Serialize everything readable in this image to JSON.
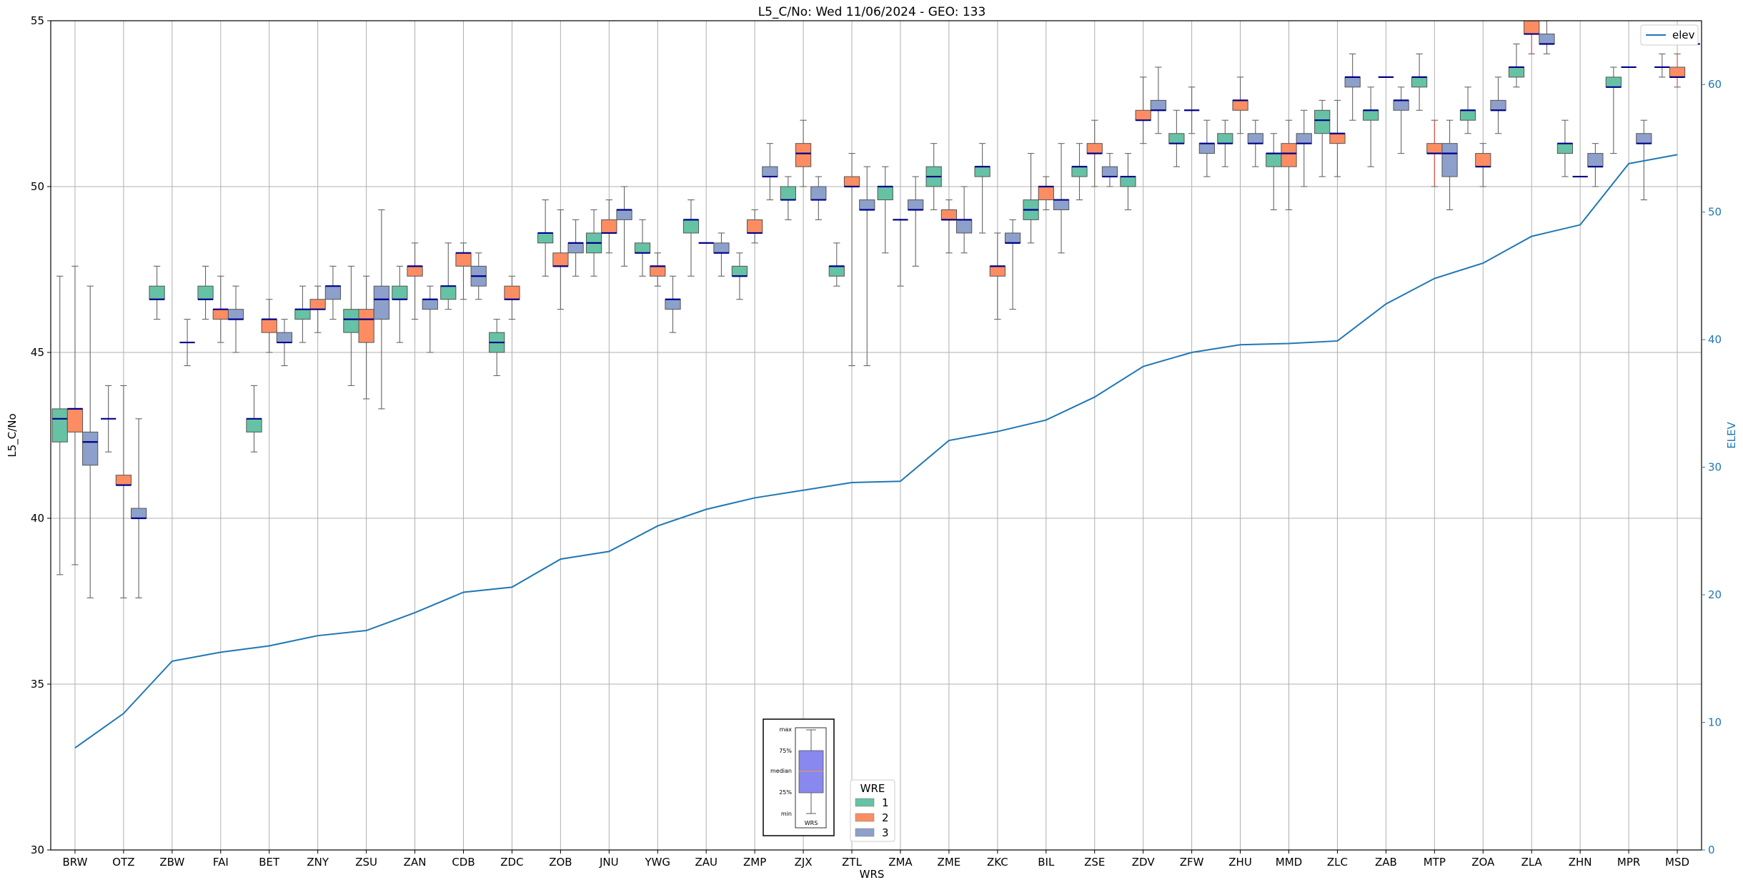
{
  "chart_data": {
    "type": "box",
    "title": "L5_C/No: Wed 11/06/2024 - GEO: 133",
    "xlabel": "WRS",
    "ylabel": "L5_C/No",
    "y2label": "ELEV",
    "ylim": [
      30,
      55
    ],
    "y2lim": [
      0,
      65
    ],
    "yticks": [
      30,
      35,
      40,
      45,
      50,
      55
    ],
    "y2ticks": [
      0,
      10,
      20,
      30,
      40,
      50,
      60
    ],
    "grid": true,
    "categories": [
      "BRW",
      "OTZ",
      "ZBW",
      "FAI",
      "BET",
      "ZNY",
      "ZSU",
      "ZAN",
      "CDB",
      "ZDC",
      "ZOB",
      "JNU",
      "YWG",
      "ZAU",
      "ZMP",
      "ZJX",
      "ZTL",
      "ZMA",
      "ZME",
      "ZKC",
      "BIL",
      "ZSE",
      "ZDV",
      "ZFW",
      "ZHU",
      "MMD",
      "ZLC",
      "ZAB",
      "MTP",
      "ZOA",
      "ZLA",
      "ZHN",
      "MPR",
      "MSD"
    ],
    "series": [
      {
        "name": "1",
        "color": "#66c2a5",
        "boxes": [
          [
            38.3,
            42.3,
            43.0,
            43.3,
            47.3
          ],
          [
            42.0,
            43.0,
            43.0,
            43.0,
            44.0
          ],
          [
            46.0,
            46.6,
            46.6,
            47.0,
            47.6
          ],
          [
            46.0,
            46.6,
            46.6,
            47.0,
            47.6
          ],
          [
            42.0,
            42.6,
            43.0,
            43.0,
            44.0
          ],
          [
            45.3,
            46.0,
            46.3,
            46.3,
            47.0
          ],
          [
            44.0,
            45.6,
            46.0,
            46.3,
            47.6
          ],
          [
            45.3,
            46.6,
            46.6,
            47.0,
            47.6
          ],
          [
            46.3,
            46.6,
            47.0,
            47.0,
            48.3
          ],
          [
            44.3,
            45.0,
            45.3,
            45.6,
            46.0
          ],
          [
            47.3,
            48.3,
            48.6,
            48.6,
            49.6
          ],
          [
            47.3,
            48.0,
            48.3,
            48.6,
            49.3
          ],
          [
            47.3,
            48.0,
            48.0,
            48.3,
            49.0
          ],
          [
            47.3,
            48.6,
            49.0,
            49.0,
            49.6
          ],
          [
            46.6,
            47.3,
            47.3,
            47.6,
            48.0
          ],
          [
            49.0,
            49.6,
            49.6,
            50.0,
            50.3
          ],
          [
            47.0,
            47.3,
            47.6,
            47.6,
            48.3
          ],
          [
            48.0,
            49.6,
            50.0,
            50.0,
            50.6
          ],
          [
            49.3,
            50.0,
            50.3,
            50.6,
            51.3
          ],
          [
            48.6,
            50.3,
            50.6,
            50.6,
            51.3
          ],
          [
            48.3,
            49.0,
            49.3,
            49.6,
            51.0
          ],
          [
            49.6,
            50.3,
            50.6,
            50.6,
            51.3
          ],
          [
            49.3,
            50.0,
            50.3,
            50.3,
            51.0
          ],
          [
            50.6,
            51.3,
            51.3,
            51.6,
            52.3
          ],
          [
            50.6,
            51.3,
            51.3,
            51.6,
            52.0
          ],
          [
            49.3,
            50.6,
            51.0,
            51.0,
            51.6
          ],
          [
            50.3,
            51.6,
            52.0,
            52.3,
            52.6
          ],
          [
            50.6,
            52.0,
            52.3,
            52.3,
            53.0
          ],
          [
            52.3,
            53.0,
            53.3,
            53.3,
            54.0
          ],
          [
            51.6,
            52.0,
            52.3,
            52.3,
            53.0
          ],
          [
            53.0,
            53.3,
            53.6,
            53.6,
            54.3
          ],
          [
            50.3,
            51.0,
            51.3,
            51.3,
            52.0
          ],
          [
            51.0,
            53.0,
            53.0,
            53.3,
            53.6
          ],
          [
            53.3,
            53.6,
            53.6,
            53.6,
            54.0
          ]
        ]
      },
      {
        "name": "2",
        "color": "#fc8d62",
        "boxes": [
          [
            38.6,
            42.6,
            43.3,
            43.3,
            47.6
          ],
          [
            37.6,
            41.0,
            41.0,
            41.3,
            44.0
          ],
          null,
          [
            45.3,
            46.0,
            46.3,
            46.3,
            47.3
          ],
          [
            45.0,
            45.6,
            46.0,
            46.0,
            46.6
          ],
          [
            45.6,
            46.3,
            46.3,
            46.6,
            47.0
          ],
          [
            43.6,
            45.3,
            46.0,
            46.3,
            47.3
          ],
          [
            46.0,
            47.3,
            47.6,
            47.6,
            48.3
          ],
          [
            46.6,
            47.6,
            48.0,
            48.0,
            48.3
          ],
          [
            46.0,
            46.6,
            46.6,
            47.0,
            47.3
          ],
          [
            46.3,
            47.6,
            47.6,
            48.0,
            49.3
          ],
          [
            48.0,
            48.6,
            48.6,
            49.0,
            49.6
          ],
          [
            47.0,
            47.3,
            47.6,
            47.6,
            48.0
          ],
          [
            48.3,
            48.3,
            48.3,
            48.3,
            48.3
          ],
          [
            48.3,
            48.6,
            48.6,
            49.0,
            49.3
          ],
          [
            50.0,
            50.6,
            51.0,
            51.3,
            52.0
          ],
          [
            44.6,
            50.0,
            50.0,
            50.3,
            51.0
          ],
          [
            47.0,
            49.0,
            49.0,
            49.0,
            49.0
          ],
          [
            48.0,
            49.0,
            49.0,
            49.3,
            49.6
          ],
          [
            46.0,
            47.3,
            47.6,
            47.6,
            48.6
          ],
          [
            49.3,
            49.6,
            50.0,
            50.0,
            50.3
          ],
          [
            50.0,
            51.0,
            51.0,
            51.3,
            52.0
          ],
          [
            51.3,
            52.0,
            52.0,
            52.3,
            53.3
          ],
          [
            51.6,
            52.3,
            52.3,
            52.3,
            53.0
          ],
          [
            51.6,
            52.3,
            52.6,
            52.6,
            53.3
          ],
          [
            49.3,
            50.6,
            51.0,
            51.3,
            52.0
          ],
          [
            50.3,
            51.3,
            51.6,
            51.6,
            52.6
          ],
          [
            53.3,
            53.3,
            53.3,
            53.3,
            53.3
          ],
          [
            50.0,
            51.0,
            51.0,
            51.3,
            52.0
          ],
          [
            50.0,
            50.6,
            50.6,
            51.0,
            51.3
          ],
          [
            54.0,
            54.6,
            54.6,
            55.0,
            55.0
          ],
          [
            50.3,
            50.3,
            50.3,
            50.3,
            50.3
          ],
          [
            53.6,
            53.6,
            53.6,
            53.6,
            53.6
          ],
          [
            53.0,
            53.3,
            53.3,
            53.6,
            54.0
          ]
        ]
      },
      {
        "name": "3",
        "color": "#8da0cb",
        "boxes": [
          [
            37.6,
            41.6,
            42.3,
            42.6,
            47.0
          ],
          [
            37.6,
            40.0,
            40.0,
            40.3,
            43.0
          ],
          [
            44.6,
            45.3,
            45.3,
            45.3,
            46.0
          ],
          [
            45.0,
            46.0,
            46.0,
            46.3,
            47.0
          ],
          [
            44.6,
            45.3,
            45.3,
            45.6,
            46.0
          ],
          [
            46.0,
            46.6,
            47.0,
            47.0,
            47.6
          ],
          [
            43.3,
            46.0,
            46.6,
            47.0,
            49.3
          ],
          [
            45.0,
            46.3,
            46.6,
            46.6,
            47.0
          ],
          [
            46.6,
            47.0,
            47.3,
            47.6,
            48.0
          ],
          null,
          [
            47.3,
            48.0,
            48.3,
            48.3,
            49.0
          ],
          [
            47.6,
            49.0,
            49.3,
            49.3,
            50.0
          ],
          [
            45.6,
            46.3,
            46.6,
            46.6,
            47.3
          ],
          [
            47.3,
            48.0,
            48.0,
            48.3,
            48.6
          ],
          [
            49.6,
            50.3,
            50.3,
            50.6,
            51.3
          ],
          [
            49.0,
            49.6,
            49.6,
            50.0,
            50.3
          ],
          [
            44.6,
            49.3,
            49.3,
            49.6,
            50.6
          ],
          [
            47.6,
            49.3,
            49.3,
            49.6,
            50.3
          ],
          [
            48.0,
            48.6,
            49.0,
            49.0,
            50.0
          ],
          [
            46.3,
            48.3,
            48.3,
            48.6,
            49.0
          ],
          [
            48.0,
            49.3,
            49.6,
            49.6,
            51.3
          ],
          [
            50.0,
            50.3,
            50.3,
            50.6,
            51.0
          ],
          [
            51.6,
            52.3,
            52.3,
            52.6,
            53.6
          ],
          [
            50.3,
            51.0,
            51.3,
            51.3,
            52.0
          ],
          [
            50.6,
            51.3,
            51.3,
            51.6,
            52.0
          ],
          [
            50.0,
            51.3,
            51.3,
            51.6,
            52.3
          ],
          [
            52.0,
            53.0,
            53.3,
            53.3,
            54.0
          ],
          [
            51.0,
            52.3,
            52.6,
            52.6,
            53.0
          ],
          [
            49.3,
            50.3,
            51.0,
            51.3,
            52.0
          ],
          [
            51.6,
            52.3,
            52.3,
            52.6,
            53.3
          ],
          [
            54.0,
            54.3,
            54.3,
            54.6,
            55.0
          ],
          [
            50.0,
            50.6,
            50.6,
            51.0,
            51.3
          ],
          [
            49.6,
            51.3,
            51.3,
            51.6,
            52.0
          ],
          [
            54.3,
            54.3,
            54.3,
            54.3,
            54.3
          ]
        ]
      }
    ],
    "elev": {
      "name": "elev",
      "color": "#1f77b4",
      "values": [
        8.0,
        10.7,
        14.8,
        15.5,
        16.0,
        16.8,
        17.2,
        18.6,
        20.2,
        20.6,
        22.8,
        23.4,
        25.4,
        26.7,
        27.6,
        28.2,
        28.8,
        28.9,
        32.1,
        32.8,
        33.7,
        35.5,
        37.9,
        39.0,
        39.6,
        39.7,
        39.9,
        42.8,
        44.8,
        46.0,
        48.1,
        49.0,
        53.8,
        54.5
      ]
    },
    "legend": {
      "title": "WRE",
      "labels": [
        "1",
        "2",
        "3"
      ],
      "placement": "bottom-center"
    },
    "elev_legend_placement": "top-right",
    "inset": {
      "labels": [
        "max",
        "75%",
        "median",
        "25%",
        "min"
      ],
      "xlabel": "WRS",
      "placement": "bottom-center"
    }
  }
}
